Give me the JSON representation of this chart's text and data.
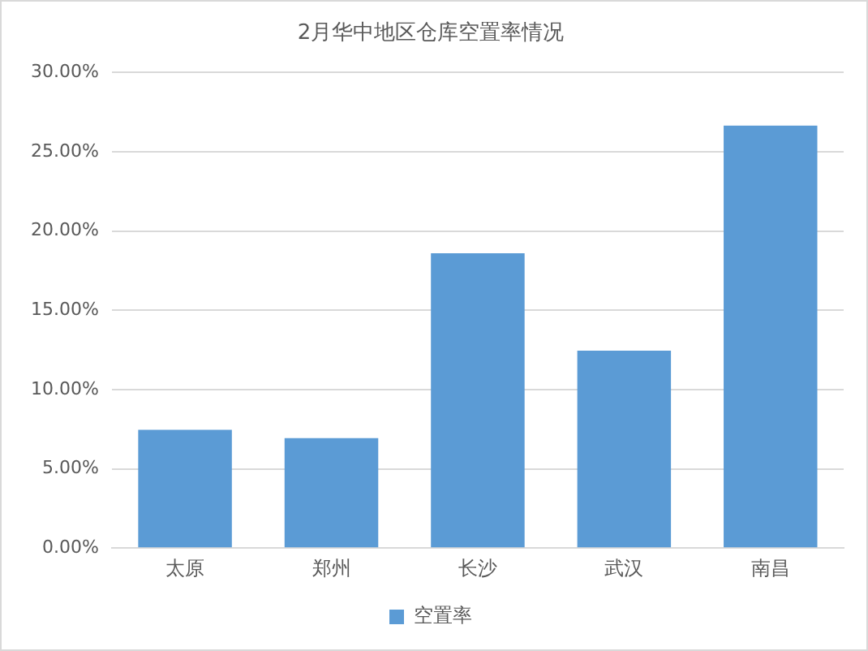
{
  "chart_data": {
    "type": "bar",
    "title": "2月华中地区仓库空置率情况",
    "categories": [
      "太原",
      "郑州",
      "长沙",
      "武汉",
      "南昌"
    ],
    "series": [
      {
        "name": "空置率",
        "color": "#5b9bd5",
        "values": [
          7.46,
          6.94,
          18.6,
          12.45,
          26.65
        ]
      }
    ],
    "ylim": [
      0,
      30
    ],
    "yticks": [
      {
        "value": 0,
        "label": "0.00%"
      },
      {
        "value": 5,
        "label": "5.00%"
      },
      {
        "value": 10,
        "label": "10.00%"
      },
      {
        "value": 15,
        "label": "15.00%"
      },
      {
        "value": 20,
        "label": "20.00%"
      },
      {
        "value": 25,
        "label": "25.00%"
      },
      {
        "value": 30,
        "label": "30.00%"
      }
    ],
    "grid": "y",
    "legend": "bottom"
  }
}
